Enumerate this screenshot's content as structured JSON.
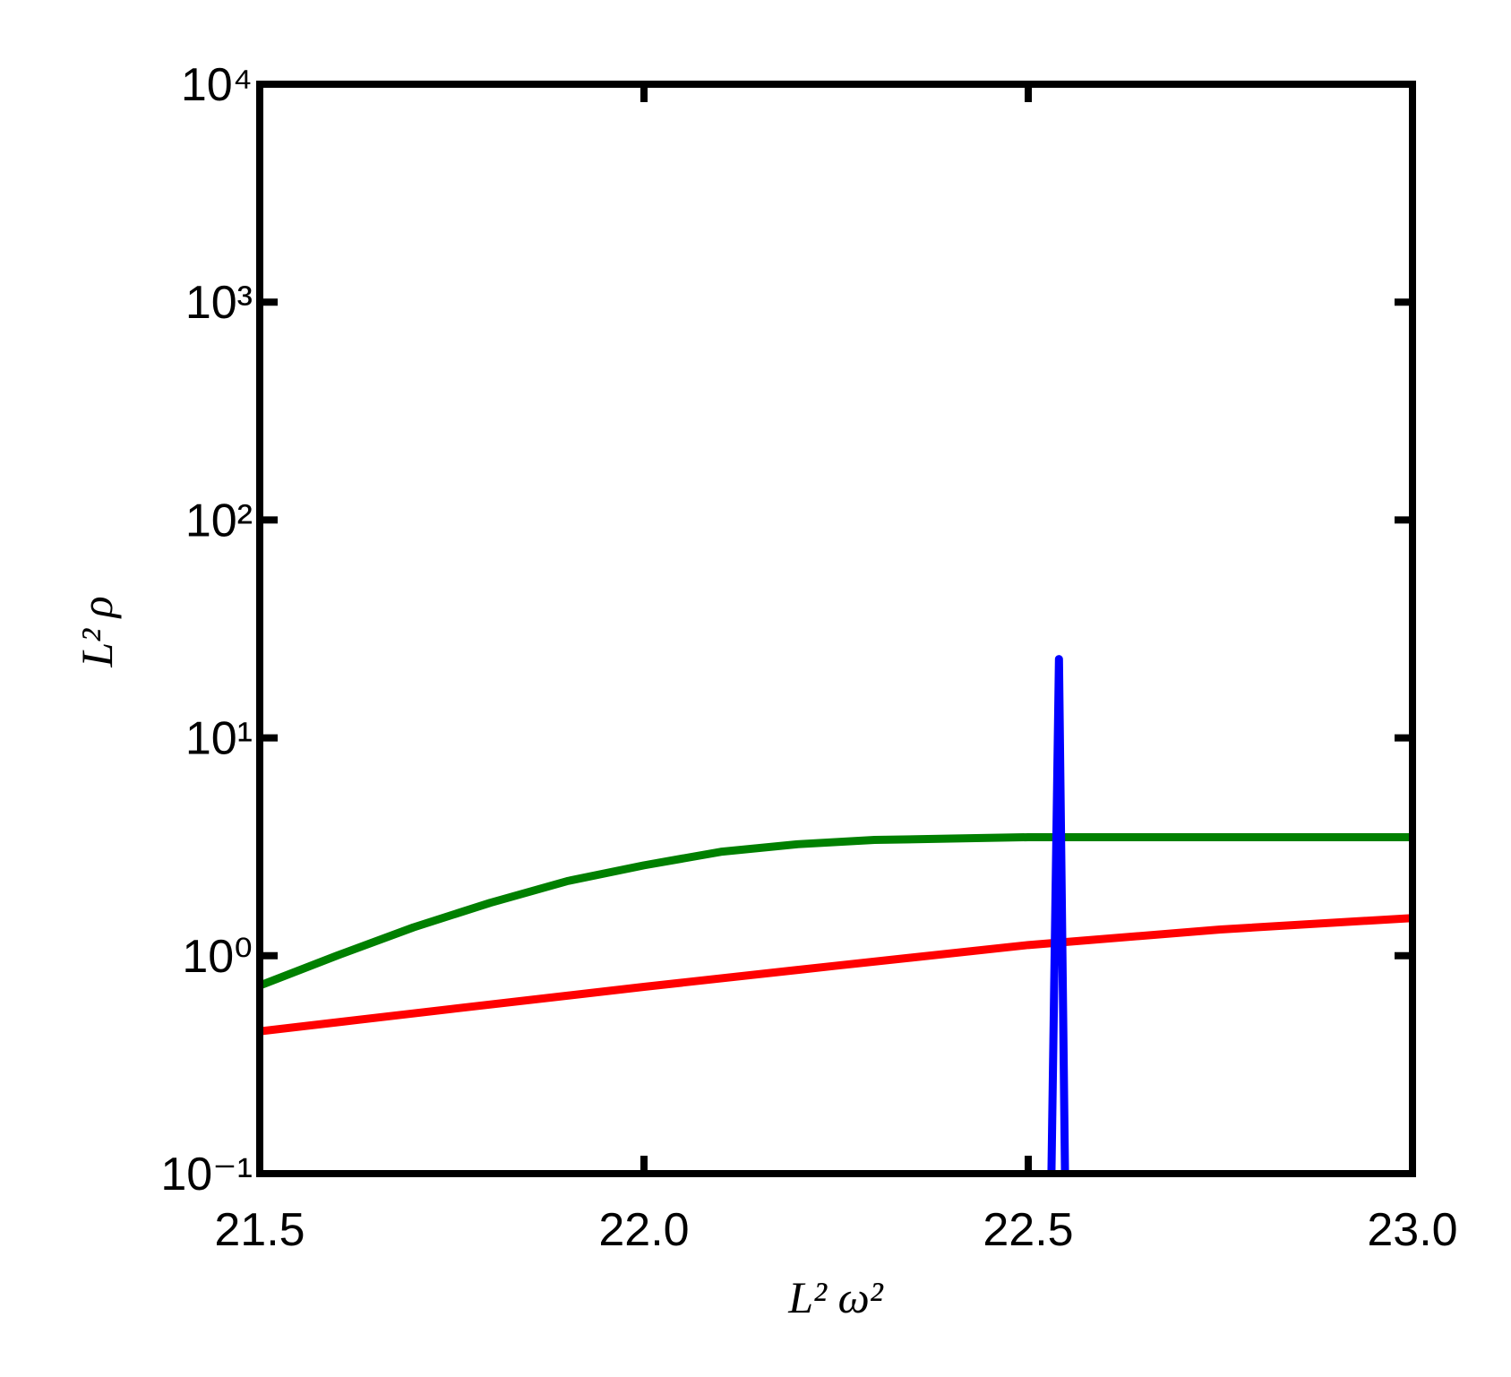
{
  "chart_data": {
    "type": "line",
    "xlabel": "L² ω²",
    "ylabel": "L² ρ",
    "xlim": [
      21.5,
      23.0
    ],
    "xticks": [
      21.5,
      {
        "value": 22.0,
        "label": "22.0"
      },
      22.5,
      {
        "value": 23.0,
        "label": "23.0"
      }
    ],
    "ylim": [
      0.1,
      10000
    ],
    "yscale": "log",
    "yticks": [
      {
        "value": 0.1,
        "label": "10⁻¹"
      },
      {
        "value": 1,
        "label": "10⁰"
      },
      {
        "value": 10,
        "label": "10¹"
      },
      {
        "value": 100,
        "label": "10²"
      },
      {
        "value": 1000,
        "label": "10³"
      },
      {
        "value": 10000,
        "label": "10⁴"
      }
    ],
    "series": [
      {
        "color": "#008000",
        "x": [
          21.5,
          21.6,
          21.7,
          21.8,
          21.9,
          22.0,
          22.1,
          22.2,
          22.3,
          22.4,
          22.5,
          22.6,
          22.8,
          23.0
        ],
        "values": [
          0.73,
          1.0,
          1.35,
          1.75,
          2.2,
          2.6,
          3.0,
          3.25,
          3.4,
          3.45,
          3.5,
          3.5,
          3.5,
          3.5
        ]
      },
      {
        "color": "#ff0000",
        "x": [
          21.5,
          21.75,
          22.0,
          22.25,
          22.5,
          22.75,
          23.0
        ],
        "values": [
          0.45,
          0.57,
          0.72,
          0.9,
          1.12,
          1.32,
          1.49
        ]
      },
      {
        "color": "#0000ff",
        "x": [
          22.53,
          22.54,
          22.548
        ],
        "values": [
          0.09,
          23,
          0.09
        ]
      }
    ]
  }
}
